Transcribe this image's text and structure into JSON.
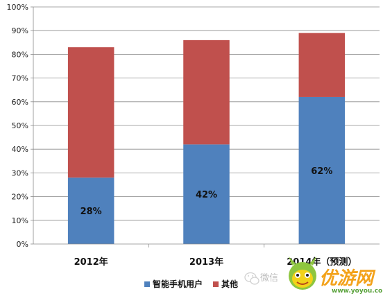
{
  "chart_data": {
    "type": "bar",
    "stacked": true,
    "categories": [
      "2012年",
      "2013年",
      "2014年（预测）"
    ],
    "series": [
      {
        "name": "智能手机用户",
        "values": [
          28,
          42,
          62
        ],
        "color": "#4f81bd",
        "labels": [
          "28%",
          "42%",
          "62%"
        ]
      },
      {
        "name": "其他",
        "values": [
          55,
          44,
          27
        ],
        "color": "#c0504d"
      }
    ],
    "ylim": [
      0,
      100
    ],
    "yticks": [
      "0%",
      "10%",
      "20%",
      "30%",
      "40%",
      "50%",
      "60%",
      "70%",
      "80%",
      "90%",
      "100%"
    ],
    "grid": true,
    "legend_position": "bottom"
  },
  "watermark": {
    "wechat_text": "微信",
    "brand_text": "优游网",
    "brand_url": "www.yoyou.com"
  }
}
